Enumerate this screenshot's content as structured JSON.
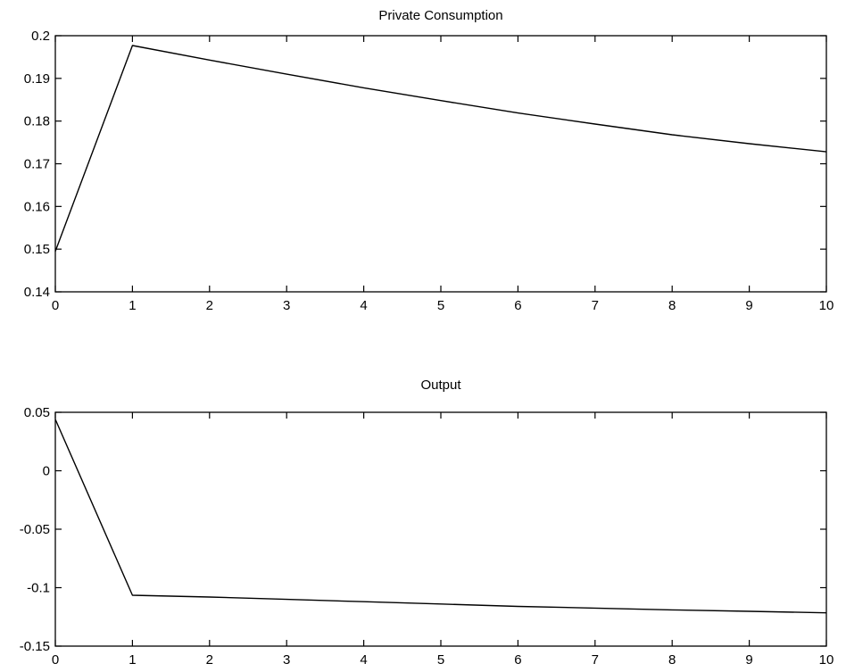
{
  "chart_data": [
    {
      "type": "line",
      "title": "Private Consumption",
      "xlabel": "",
      "ylabel": "",
      "xlim": [
        0,
        10
      ],
      "ylim": [
        0.14,
        0.2
      ],
      "grid": false,
      "xticks": [
        0,
        1,
        2,
        3,
        4,
        5,
        6,
        7,
        8,
        9,
        10
      ],
      "xtick_labels": [
        "0",
        "1",
        "2",
        "3",
        "4",
        "5",
        "6",
        "7",
        "8",
        "9",
        "10"
      ],
      "yticks": [
        0.14,
        0.15,
        0.16,
        0.17,
        0.18,
        0.19,
        0.2
      ],
      "ytick_labels": [
        "0.14",
        "0.15",
        "0.16",
        "0.17",
        "0.18",
        "0.19",
        "0.2"
      ],
      "x": [
        0,
        1,
        2,
        3,
        4,
        5,
        6,
        7,
        8,
        9,
        10
      ],
      "series": [
        {
          "color": "#000000",
          "values": [
            0.1495,
            0.1977,
            0.1943,
            0.191,
            0.1878,
            0.1848,
            0.1819,
            0.1793,
            0.1768,
            0.1747,
            0.1728
          ]
        }
      ]
    },
    {
      "type": "line",
      "title": "Output",
      "xlabel": "",
      "ylabel": "",
      "xlim": [
        0,
        10
      ],
      "ylim": [
        -0.15,
        0.05
      ],
      "grid": false,
      "xticks": [
        0,
        1,
        2,
        3,
        4,
        5,
        6,
        7,
        8,
        9,
        10
      ],
      "xtick_labels": [
        "0",
        "1",
        "2",
        "3",
        "4",
        "5",
        "6",
        "7",
        "8",
        "9",
        "10"
      ],
      "yticks": [
        -0.15,
        -0.1,
        -0.05,
        0,
        0.05
      ],
      "ytick_labels": [
        "-0.15",
        "-0.1",
        "-0.05",
        "0",
        "0.05"
      ],
      "x": [
        0,
        1,
        2,
        3,
        4,
        5,
        6,
        7,
        8,
        9,
        10
      ],
      "series": [
        {
          "color": "#000000",
          "values": [
            0.044,
            -0.1065,
            -0.108,
            -0.11,
            -0.112,
            -0.114,
            -0.116,
            -0.1175,
            -0.119,
            -0.1202,
            -0.1215
          ]
        }
      ]
    }
  ]
}
